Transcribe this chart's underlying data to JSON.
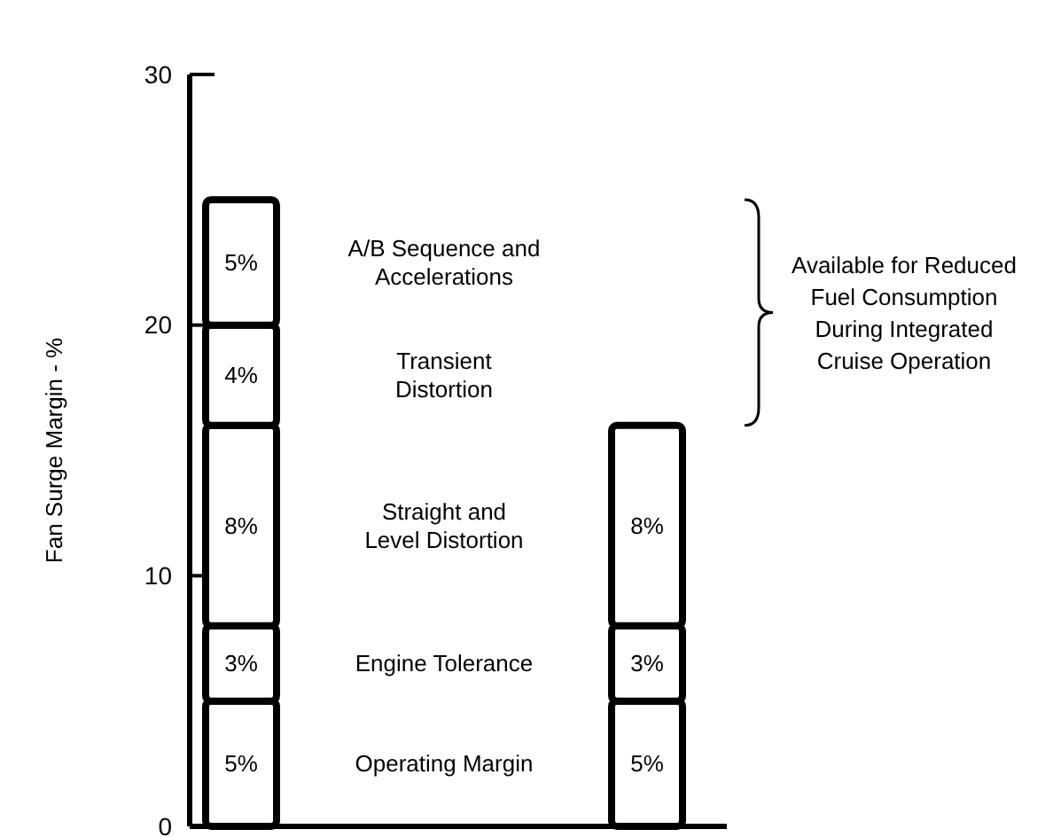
{
  "chart_data": {
    "type": "bar",
    "stacked": true,
    "ylabel": "Fan Surge Margin - %",
    "categories": [
      null,
      null
    ],
    "ylim": [
      0,
      30
    ],
    "yticks": [
      0,
      10,
      20,
      30
    ],
    "grid": false,
    "series": [
      {
        "color": "#ffffff",
        "values": [
          5,
          5
        ],
        "value_labels": [
          "5%",
          "5%"
        ]
      },
      {
        "color": "#ffffff",
        "values": [
          3,
          3
        ],
        "value_labels": [
          "3%",
          "3%"
        ]
      },
      {
        "color": "#ffffff",
        "values": [
          8,
          8
        ],
        "value_labels": [
          "8%",
          "8%"
        ]
      },
      {
        "color": "#ffffff",
        "values": [
          4,
          null
        ],
        "value_labels": [
          "4%",
          null
        ]
      },
      {
        "color": "#ffffff",
        "values": [
          5,
          null
        ],
        "value_labels": [
          "5%",
          null
        ]
      }
    ],
    "annotations": [
      "Operating Margin",
      "Engine Tolerance",
      "Straight and Level Distortion",
      "Transient Distortion",
      "A/B Sequence and Accelerations",
      "Available for Reduced Fuel Consumption During Integrated Cruise Operation"
    ]
  }
}
